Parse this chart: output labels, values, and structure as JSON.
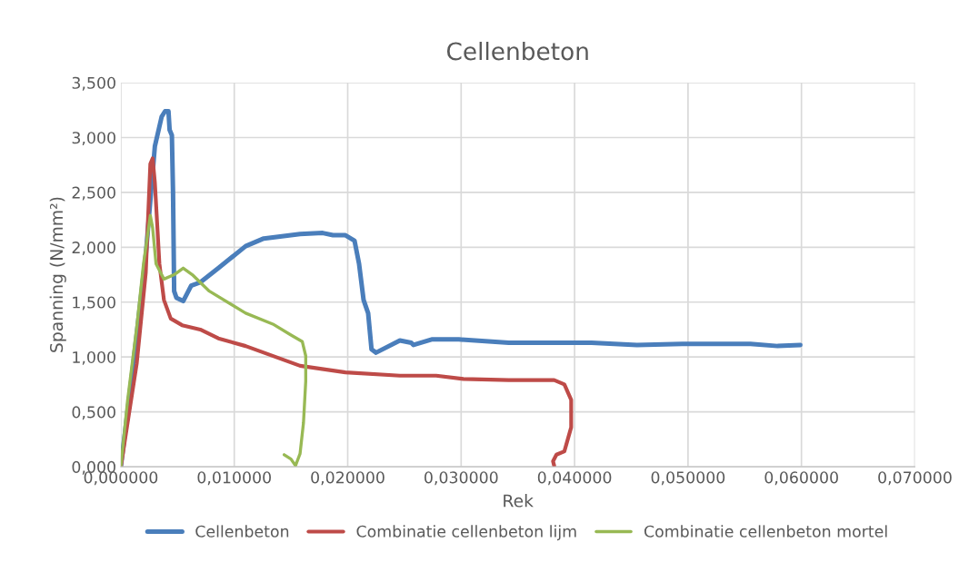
{
  "chart_data": {
    "type": "line",
    "title": "Cellenbeton",
    "xlabel": "Rek",
    "ylabel": "Spanning (N/mm²)",
    "xlim": [
      0,
      0.07
    ],
    "ylim": [
      0,
      3.5
    ],
    "xticks": [
      {
        "value": 0,
        "label": "0,000000"
      },
      {
        "value": 0.01,
        "label": "0,010000"
      },
      {
        "value": 0.02,
        "label": "0,020000"
      },
      {
        "value": 0.03,
        "label": "0,030000"
      },
      {
        "value": 0.04,
        "label": "0,040000"
      },
      {
        "value": 0.05,
        "label": "0,050000"
      },
      {
        "value": 0.06,
        "label": "0,060000"
      },
      {
        "value": 0.07,
        "label": "0,070000"
      }
    ],
    "yticks": [
      {
        "value": 0,
        "label": "0,000"
      },
      {
        "value": 0.5,
        "label": "0,500"
      },
      {
        "value": 1,
        "label": "1,000"
      },
      {
        "value": 1.5,
        "label": "1,500"
      },
      {
        "value": 2,
        "label": "2,000"
      },
      {
        "value": 2.5,
        "label": "2,500"
      },
      {
        "value": 3,
        "label": "3,000"
      },
      {
        "value": 3.5,
        "label": "3,500"
      }
    ],
    "grid": true,
    "legend": "bottom",
    "marker": "none",
    "line_style": "solid",
    "series": [
      {
        "name": "Cellenbeton",
        "color": "#4a7ebb",
        "x": [
          0,
          0.0011,
          0.0022,
          0.003,
          0.0036,
          0.0039,
          0.0042,
          0.0043,
          0.0045,
          0.0046,
          0.0047,
          0.0049,
          0.0055,
          0.0062,
          0.007,
          0.0086,
          0.011,
          0.0126,
          0.0158,
          0.0178,
          0.0187,
          0.0198,
          0.0206,
          0.021,
          0.0214,
          0.0218,
          0.0221,
          0.0225,
          0.0246,
          0.0256,
          0.0258,
          0.0274,
          0.0298,
          0.0342,
          0.0415,
          0.0455,
          0.0495,
          0.0555,
          0.0579,
          0.0599
        ],
        "values": [
          0,
          0.94,
          1.93,
          2.92,
          3.19,
          3.24,
          3.24,
          3.07,
          3.02,
          2.51,
          1.6,
          1.54,
          1.51,
          1.65,
          1.68,
          1.81,
          2.01,
          2.08,
          2.12,
          2.13,
          2.11,
          2.11,
          2.06,
          1.85,
          1.52,
          1.4,
          1.07,
          1.04,
          1.15,
          1.13,
          1.11,
          1.16,
          1.16,
          1.13,
          1.13,
          1.11,
          1.12,
          1.12,
          1.1,
          1.11
        ]
      },
      {
        "name": "Combinatie cellenbeton lijm",
        "color": "#be4b48",
        "x": [
          0,
          0.0014,
          0.0022,
          0.0026,
          0.0028,
          0.003,
          0.0034,
          0.0038,
          0.0044,
          0.0054,
          0.007,
          0.0086,
          0.011,
          0.0158,
          0.0198,
          0.0246,
          0.0278,
          0.0302,
          0.0342,
          0.0382,
          0.0391,
          0.0397,
          0.0397,
          0.0391,
          0.0384,
          0.0381,
          0.0382
        ],
        "values": [
          0,
          0.94,
          1.77,
          2.76,
          2.81,
          2.59,
          1.85,
          1.52,
          1.35,
          1.29,
          1.25,
          1.17,
          1.1,
          0.92,
          0.86,
          0.83,
          0.83,
          0.8,
          0.79,
          0.79,
          0.75,
          0.61,
          0.36,
          0.14,
          0.11,
          0.05,
          0.01
        ]
      },
      {
        "name": "Combinatie cellenbeton mortel",
        "color": "#98b954",
        "x": [
          0,
          0.0006,
          0.0014,
          0.002,
          0.0026,
          0.0028,
          0.0031,
          0.0038,
          0.0047,
          0.0055,
          0.0063,
          0.0078,
          0.011,
          0.0134,
          0.015,
          0.016,
          0.0163,
          0.0163,
          0.0161,
          0.0158,
          0.0154,
          0.015,
          0.0144
        ],
        "values": [
          0,
          0.61,
          1.27,
          1.85,
          2.29,
          2.18,
          1.85,
          1.71,
          1.75,
          1.81,
          1.75,
          1.6,
          1.4,
          1.3,
          1.2,
          1.14,
          1.01,
          0.78,
          0.4,
          0.12,
          0.01,
          0.07,
          0.11
        ]
      }
    ]
  }
}
